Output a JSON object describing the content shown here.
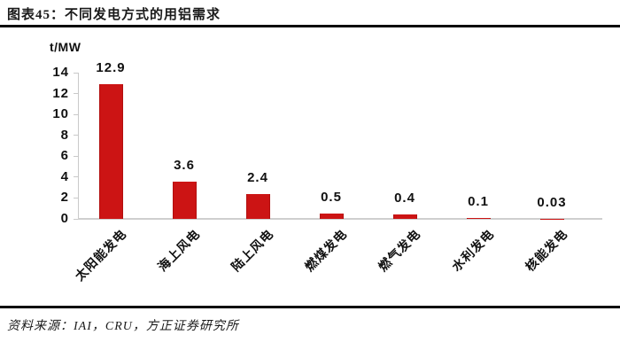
{
  "title": "图表45：不同发电方式的用铝需求",
  "source": "资料来源：IAI，CRU，方正证券研究所",
  "chart_data": {
    "type": "bar",
    "title": "图表45：不同发电方式的用铝需求",
    "unit_label": "t/MW",
    "categories": [
      "太阳能发电",
      "海上风电",
      "陆上风电",
      "燃煤发电",
      "燃气发电",
      "水利发电",
      "核能发电"
    ],
    "values": [
      12.9,
      3.6,
      2.4,
      0.5,
      0.4,
      0.1,
      0.03
    ],
    "value_labels": [
      "12.9",
      "3.6",
      "2.4",
      "0.5",
      "0.4",
      "0.1",
      "0.03"
    ],
    "ylim": [
      0,
      14
    ],
    "yticks": [
      0,
      2,
      4,
      6,
      8,
      10,
      12,
      14
    ],
    "xlabel": "",
    "ylabel": "t/MW",
    "grid": false,
    "legend": "none",
    "bar_color": "#CC1414",
    "bar_edge_color": "#B20F0F",
    "axis_color": "#C9C9C9",
    "text_color": "#111111"
  }
}
